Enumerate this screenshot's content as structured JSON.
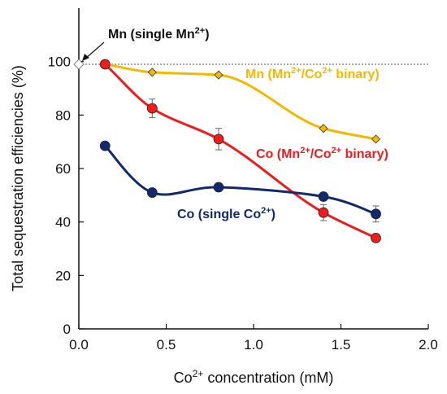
{
  "chart_data": {
    "type": "scatter",
    "title": "",
    "xlabel": {
      "pre": "Co",
      "sup": "2+",
      "post": " concentration (mM)"
    },
    "ylabel": "Total sequestration efficiencies (%)",
    "xlim": [
      0,
      2.0
    ],
    "ylim": [
      0,
      120
    ],
    "xticks": [
      "0.0",
      "0.5",
      "1.0",
      "1.5",
      "2.0"
    ],
    "xtick_values": [
      0,
      0.5,
      1.0,
      1.5,
      2.0
    ],
    "yticks": [
      "0",
      "20",
      "40",
      "60",
      "80",
      "100"
    ],
    "ytick_values": [
      0,
      20,
      40,
      60,
      80,
      100
    ],
    "reference_line_y": 99,
    "grid": false,
    "series": [
      {
        "key": "mn_binary",
        "color": "#f5b800",
        "marker": "diamond",
        "x": [
          0.15,
          0.42,
          0.8,
          1.4,
          1.7
        ],
        "y": [
          99,
          96,
          95,
          75,
          71
        ],
        "err": [
          0,
          0,
          0,
          0,
          0
        ]
      },
      {
        "key": "co_binary",
        "color": "#ee1c1c",
        "marker": "circle",
        "x": [
          0.15,
          0.42,
          0.8,
          1.4,
          1.7
        ],
        "y": [
          99,
          82.5,
          71,
          43.5,
          34
        ],
        "err": [
          0,
          3.5,
          4,
          3,
          0
        ]
      },
      {
        "key": "co_single",
        "color": "#13296e",
        "marker": "circle",
        "x": [
          0.15,
          0.42,
          0.8,
          1.4,
          1.7
        ],
        "y": [
          68.5,
          51,
          53,
          49.5,
          43
        ],
        "err": [
          0,
          0,
          0,
          0,
          3
        ]
      },
      {
        "key": "mn_single",
        "color": "#ffffff",
        "marker": "diamond-open",
        "x": [
          0.0
        ],
        "y": [
          99
        ],
        "err": [
          0
        ]
      }
    ],
    "annotations": {
      "mn_single": {
        "pre": "Mn (single Mn",
        "sup": "2+",
        "post": ")",
        "color": "#111111"
      },
      "mn_binary": {
        "pre": "Mn (Mn",
        "sup1": "2+",
        "mid": "/Co",
        "sup2": "2+",
        "post": " binary)",
        "color": "#f5b800"
      },
      "co_binary": {
        "pre": "Co (Mn",
        "sup1": "2+",
        "mid": "/Co",
        "sup2": "2+",
        "post": " binary)",
        "color": "#ee1c1c"
      },
      "co_single": {
        "pre": "Co (single Co",
        "sup": "2+",
        "post": ")",
        "color": "#13296e"
      }
    }
  }
}
